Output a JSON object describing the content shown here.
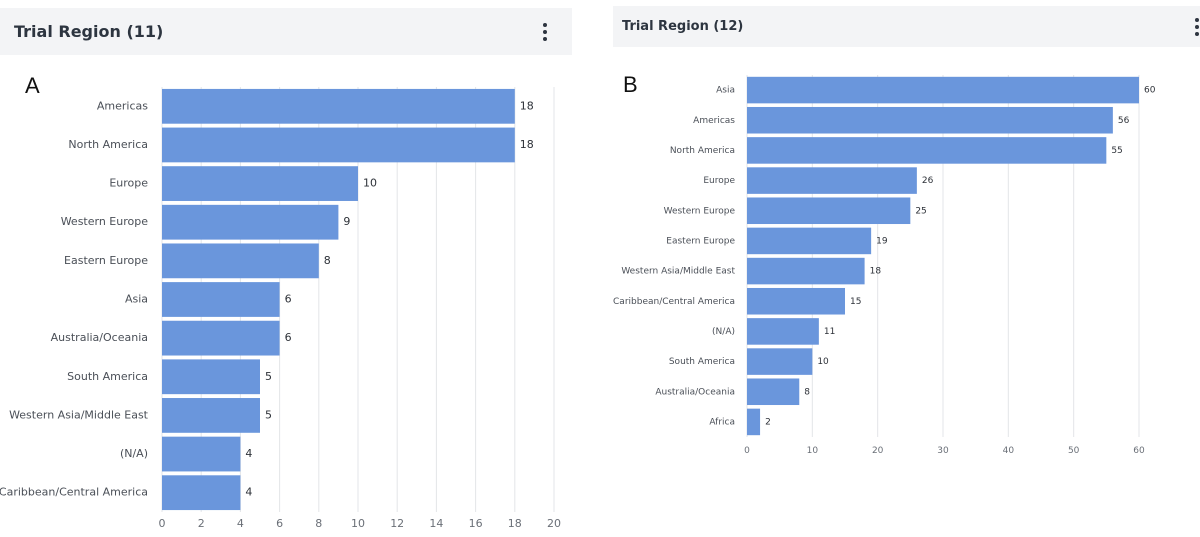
{
  "colors": {
    "bar": "#6a96dc",
    "header_bg": "#f3f4f6",
    "grid": "#e3e5e8"
  },
  "icons": {
    "menu": "more-vertical-icon"
  },
  "panels": [
    {
      "letter": "A",
      "title": "Trial Region (11)"
    },
    {
      "letter": "B",
      "title": "Trial Region (12)"
    }
  ],
  "chart_data": [
    {
      "type": "bar",
      "orientation": "horizontal",
      "title": "Trial Region (11)",
      "categories": [
        "Americas",
        "North America",
        "Europe",
        "Western Europe",
        "Eastern Europe",
        "Asia",
        "Australia/Oceania",
        "South America",
        "Western Asia/Middle East",
        "(N/A)",
        "Caribbean/Central America"
      ],
      "values": [
        18,
        18,
        10,
        9,
        8,
        6,
        6,
        5,
        5,
        4,
        4
      ],
      "xlim": [
        0,
        20
      ],
      "xticks": [
        "0",
        "2",
        "4",
        "6",
        "8",
        "10",
        "12",
        "14",
        "16",
        "18",
        "20"
      ],
      "grid": true,
      "data_labels": true
    },
    {
      "type": "bar",
      "orientation": "horizontal",
      "title": "Trial Region (12)",
      "categories": [
        "Asia",
        "Americas",
        "North America",
        "Europe",
        "Western Europe",
        "Eastern Europe",
        "Western Asia/Middle East",
        "Caribbean/Central America",
        "(N/A)",
        "South America",
        "Australia/Oceania",
        "Africa"
      ],
      "values": [
        60,
        56,
        55,
        26,
        25,
        19,
        18,
        15,
        11,
        10,
        8,
        2
      ],
      "xlim": [
        0,
        60
      ],
      "xticks": [
        "0",
        "10",
        "20",
        "30",
        "40",
        "50",
        "60"
      ],
      "grid": true,
      "data_labels": true
    }
  ]
}
